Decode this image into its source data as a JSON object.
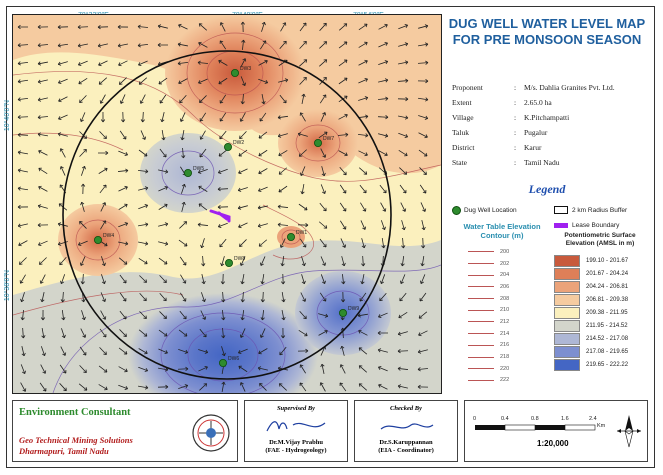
{
  "map": {
    "title": "DUG WELL WATER LEVEL MAP\nFOR PRE MONSOON SEASON",
    "coords_top": [
      "78°32'0\"E",
      "78°40'0\"E",
      "78°54'0\"E"
    ],
    "coords_left": [
      "10°40'0\"N",
      "10°38'0\"N"
    ],
    "wells": [
      {
        "id": "DW3",
        "label": "DW3"
      },
      {
        "id": "DW5",
        "label": "DW5"
      },
      {
        "id": "DW7",
        "label": "DW7"
      },
      {
        "id": "DW2",
        "label": "DW2"
      },
      {
        "id": "DW4",
        "label": "DW4"
      },
      {
        "id": "DW1",
        "label": "DW1"
      },
      {
        "id": "DW8",
        "label": "DW8"
      },
      {
        "id": "DW6",
        "label": "DW6"
      },
      {
        "id": "DW9",
        "label": "DW9"
      }
    ]
  },
  "info": [
    {
      "key": "Proponent",
      "value": "M/s. Dahlia Granites Pvt. Ltd."
    },
    {
      "key": "Extent",
      "value": "2.65.0 ha"
    },
    {
      "key": "Village",
      "value": "K.Pitchampatti"
    },
    {
      "key": "Taluk",
      "value": "Pugalur"
    },
    {
      "key": "District",
      "value": "Karur"
    },
    {
      "key": "State",
      "value": "Tamil Nadu"
    }
  ],
  "legend": {
    "title": "Legend",
    "dug_well": "Dug Well Location",
    "radius": "2 km Radius Buffer",
    "lease": "Lease Boundary",
    "wt_title": "Water Table Elevation\nContour (m)",
    "contours": [
      "200",
      "202",
      "204",
      "206",
      "208",
      "210",
      "212",
      "214",
      "216",
      "218",
      "220",
      "222"
    ],
    "pot_title": "Potentiometric Surface\nElevation (AMSL in m)",
    "pot_ranges": [
      {
        "label": "199.10 - 201.67",
        "color": "#c85a3c"
      },
      {
        "label": "201.67 - 204.24",
        "color": "#de7f58"
      },
      {
        "label": "204.24 - 206.81",
        "color": "#eba37a"
      },
      {
        "label": "206.81 - 209.38",
        "color": "#f5cba0"
      },
      {
        "label": "209.38 - 211.95",
        "color": "#fbf0be"
      },
      {
        "label": "211.95 - 214.52",
        "color": "#d3d5cb"
      },
      {
        "label": "214.52 - 217.08",
        "color": "#aeb7d5"
      },
      {
        "label": "217.08 - 219.65",
        "color": "#7d8fd0"
      },
      {
        "label": "219.65 - 222.22",
        "color": "#4466c4"
      }
    ]
  },
  "footer": {
    "env_title": "Environment Consultant",
    "env_sub": "Geo Technical Mining Solutions\nDharmapuri, Tamil Nadu",
    "supervised_label": "Supervised By",
    "supervised_name": "Dr.M.Vijay Prabhu\n(FAE - Hydrogeology)",
    "checked_label": "Checked By",
    "checked_name": "Dr.S.Karuppannan\n(EIA - Coordinator)",
    "scale_nums": [
      "0",
      "0.4",
      "0.8",
      "1.6",
      "2.4"
    ],
    "scale_unit": "Km",
    "scale_ratio": "1:20,000"
  }
}
